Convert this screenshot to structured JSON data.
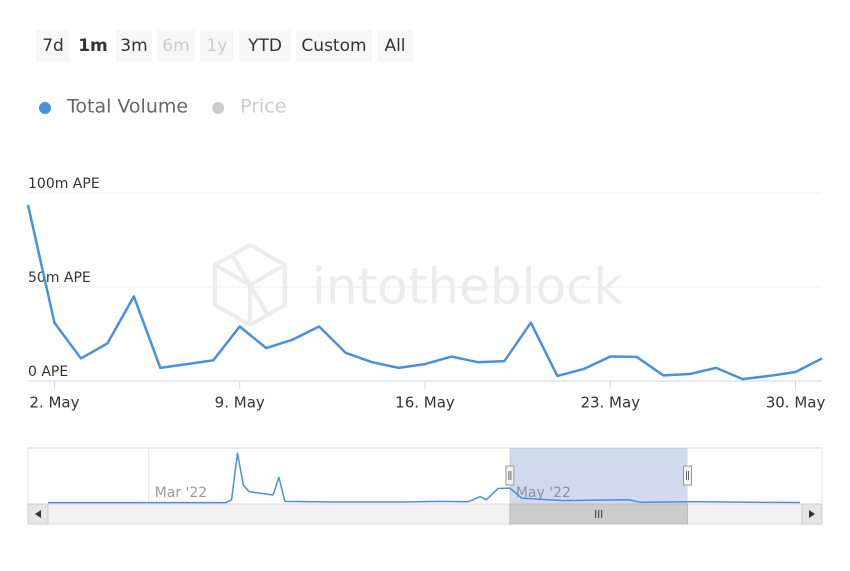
{
  "range_selector": {
    "buttons": [
      {
        "label": "7d",
        "state": "normal"
      },
      {
        "label": "1m",
        "state": "selected"
      },
      {
        "label": "3m",
        "state": "normal"
      },
      {
        "label": "6m",
        "state": "disabled"
      },
      {
        "label": "1y",
        "state": "disabled"
      },
      {
        "label": "YTD",
        "state": "normal"
      },
      {
        "label": "Custom",
        "state": "normal"
      },
      {
        "label": "All",
        "state": "normal"
      }
    ]
  },
  "watermark": "intotheblock",
  "chart_data": [
    {
      "type": "line",
      "x": [
        1,
        2,
        3,
        4,
        5,
        6,
        7,
        8,
        9,
        10,
        11,
        12,
        13,
        14,
        15,
        16,
        17,
        18,
        19,
        20,
        21,
        22,
        23,
        24,
        25,
        26,
        27,
        28,
        29,
        30,
        31
      ],
      "series": [
        {
          "name": "Total Volume",
          "color": "#4a8fe0",
          "visible": true,
          "values": [
            93.6,
            31,
            12,
            20,
            45,
            7,
            9,
            11,
            29,
            17.5,
            22,
            29,
            15,
            10,
            7,
            9,
            13,
            10,
            10.6,
            31,
            2.7,
            6.4,
            13,
            12.8,
            3,
            3.7,
            7,
            1,
            2.7,
            4.8,
            12
          ]
        },
        {
          "name": "Price",
          "color": "#cccccc",
          "visible": false
        }
      ],
      "xlim": [
        1,
        31
      ],
      "xticks": [
        {
          "value": 2,
          "label": "2. May"
        },
        {
          "value": 9,
          "label": "9. May"
        },
        {
          "value": 16,
          "label": "16. May"
        },
        {
          "value": 23,
          "label": "23. May"
        },
        {
          "value": 30,
          "label": "30. May"
        }
      ],
      "ylim": [
        0,
        100
      ],
      "yticks": [
        {
          "value": 0,
          "label": "0 APE"
        },
        {
          "value": 50,
          "label": "50m APE"
        },
        {
          "value": 100,
          "label": "100m APE"
        }
      ],
      "grid": true
    },
    {
      "type": "navigator",
      "x": [
        43,
        73,
        74,
        75,
        76,
        77,
        81,
        82,
        83,
        91,
        103,
        109,
        114,
        116,
        117,
        119,
        121,
        123,
        130,
        141,
        143,
        153,
        164,
        170
      ],
      "values": [
        2,
        2,
        20,
        310,
        110,
        70,
        50,
        160,
        10,
        6,
        6,
        10,
        8,
        40,
        20,
        90,
        93,
        30,
        15,
        20,
        5,
        8,
        4,
        3
      ],
      "color": "#4a8fe0",
      "xlim": [
        43,
        170
      ],
      "ylim": [
        0,
        330
      ],
      "xticks": [
        {
          "value": 60,
          "label": "Mar '22"
        },
        {
          "value": 121,
          "label": "May '22"
        }
      ],
      "selection": [
        121,
        151
      ]
    }
  ]
}
